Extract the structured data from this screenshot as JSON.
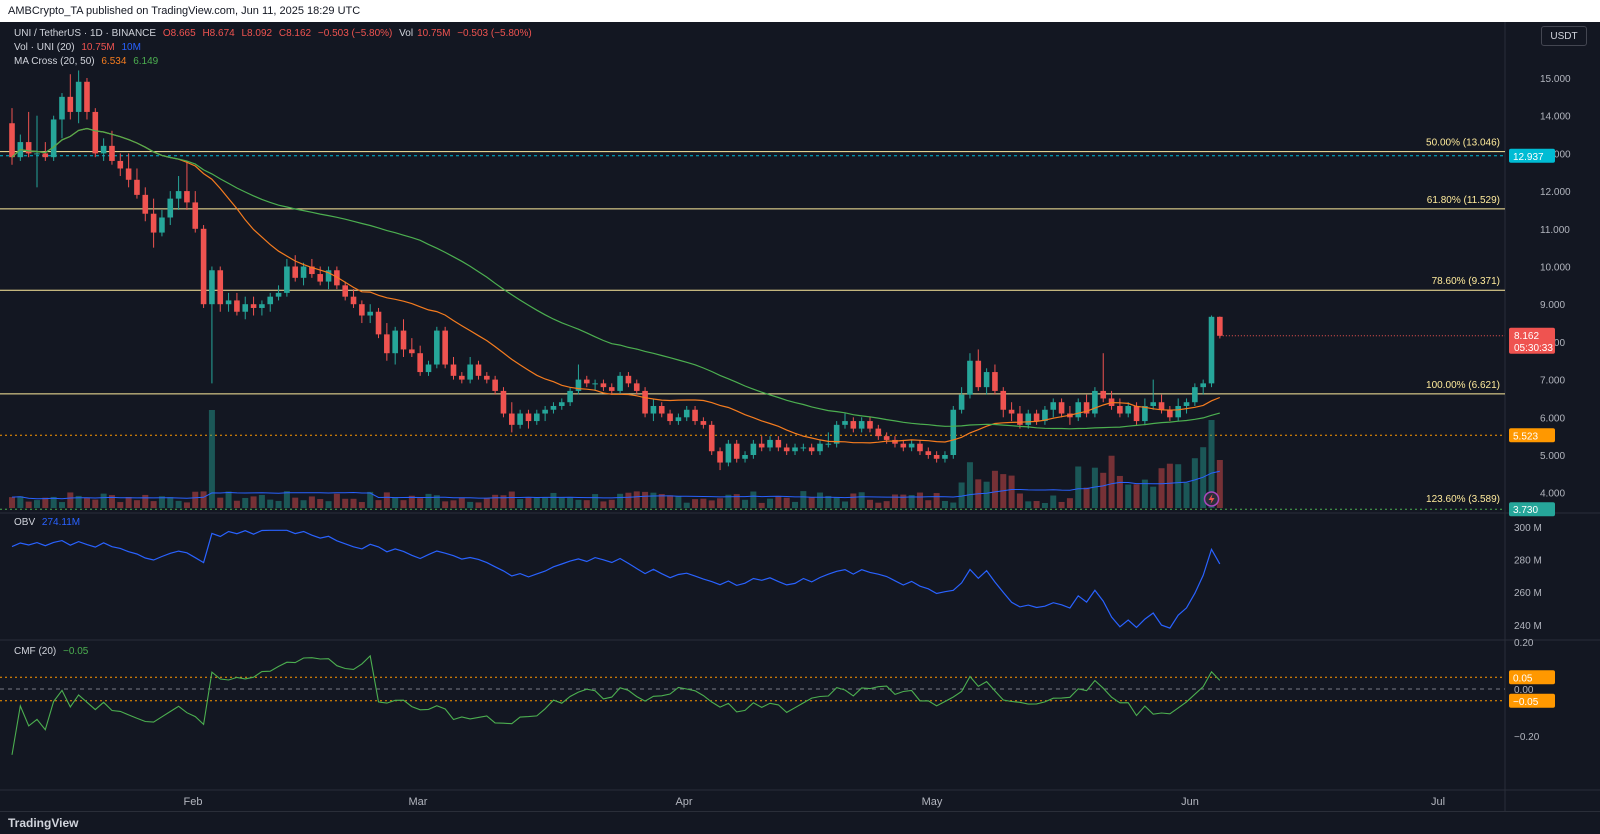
{
  "header": {
    "text": "AMBCrypto_TA published on TradingView.com, Jun 11, 2025 18:29 UTC"
  },
  "legend": {
    "symbol": "UNI / TetherUS · 1D · BINANCE",
    "open": "O8.665",
    "high": "H8.674",
    "low": "L8.092",
    "close": "C8.162",
    "change": "−0.503 (−5.80%)",
    "vol_label": "Vol",
    "vol_value": "10.75M",
    "vol_change": "−0.503 (−5.80%)",
    "vol_ind_label": "Vol · UNI (20)",
    "vol_ind_v1": "10.75M",
    "vol_ind_v2": "10M",
    "ma_label": "MA Cross (20, 50)",
    "ma_v1": "6.534",
    "ma_v2": "6.149",
    "obv_label": "OBV",
    "obv_value": "274.11M",
    "cmf_label": "CMF (20)",
    "cmf_value": "−0.05"
  },
  "currency_button": "USDT",
  "footer": {
    "logo": "TradingView"
  },
  "colors": {
    "up": "#26a69a",
    "down": "#ef5350",
    "ma20": "#f57c1f",
    "ma50": "#4caf50",
    "obv": "#2962ff",
    "fib": "#ffeb9c",
    "cyan": "#00bcd4",
    "orange": "#ff9800",
    "green_level": "#4caf50",
    "cmf": "#4caf50"
  },
  "icons": [
    "lightning-icon"
  ],
  "chart_data": {
    "type": "candlestick",
    "x_axis_labels": [
      "Feb",
      "Mar",
      "Apr",
      "May",
      "Jun",
      "Jul"
    ],
    "price_axis": {
      "ticks": [
        "15.000",
        "14.000",
        "13.000",
        "12.000",
        "11.000",
        "10.000",
        "9.000",
        "8.000",
        "7.000",
        "6.000",
        "5.000",
        "4.000"
      ],
      "current_price": "8.162",
      "countdown": "05:30:33",
      "level_badges": [
        {
          "label": "12.937",
          "color": "#00bcd4"
        },
        {
          "label": "5.523",
          "color": "#ff9800"
        },
        {
          "label": "3.730",
          "color": "#26a69a"
        }
      ]
    },
    "fib_levels": [
      {
        "label": "50.00% (13.046)",
        "value": 13.046
      },
      {
        "label": "61.80% (11.529)",
        "value": 11.529
      },
      {
        "label": "78.60% (9.371)",
        "value": 9.371
      },
      {
        "label": "100.00% (6.621)",
        "value": 6.621
      },
      {
        "label": "123.60% (3.589)",
        "value": 3.589
      }
    ],
    "candles": [
      [
        13.8,
        14.2,
        12.7,
        12.9
      ],
      [
        12.9,
        13.5,
        12.8,
        13.3
      ],
      [
        13.3,
        14.1,
        12.9,
        13.0
      ],
      [
        13.0,
        14.0,
        12.1,
        13.0
      ],
      [
        13.0,
        13.3,
        12.8,
        12.9
      ],
      [
        12.9,
        14.0,
        12.8,
        13.9
      ],
      [
        13.9,
        14.6,
        13.4,
        14.5
      ],
      [
        14.5,
        15.1,
        13.9,
        14.1
      ],
      [
        14.1,
        15.2,
        13.8,
        14.9
      ],
      [
        14.9,
        15.0,
        13.9,
        14.1
      ],
      [
        14.1,
        14.2,
        12.9,
        13.0
      ],
      [
        13.0,
        13.4,
        12.8,
        13.2
      ],
      [
        13.2,
        13.6,
        12.7,
        12.8
      ],
      [
        12.8,
        13.0,
        12.4,
        12.6
      ],
      [
        12.6,
        13.0,
        12.1,
        12.3
      ],
      [
        12.3,
        12.6,
        11.8,
        11.9
      ],
      [
        11.9,
        12.1,
        11.2,
        11.4
      ],
      [
        11.4,
        11.8,
        10.5,
        10.9
      ],
      [
        10.9,
        11.5,
        10.8,
        11.3
      ],
      [
        11.3,
        12.0,
        11.1,
        11.8
      ],
      [
        11.8,
        12.4,
        11.5,
        12.0
      ],
      [
        12.0,
        12.8,
        11.5,
        11.7
      ],
      [
        11.7,
        12.0,
        10.9,
        11.0
      ],
      [
        11.0,
        11.1,
        8.9,
        9.0
      ],
      [
        9.0,
        10.0,
        6.9,
        9.9
      ],
      [
        9.9,
        10.0,
        8.8,
        9.0
      ],
      [
        9.0,
        9.3,
        8.8,
        9.1
      ],
      [
        9.1,
        9.3,
        8.7,
        8.8
      ],
      [
        8.8,
        9.2,
        8.6,
        9.0
      ],
      [
        9.0,
        9.2,
        8.7,
        8.9
      ],
      [
        8.9,
        9.1,
        8.7,
        9.0
      ],
      [
        9.0,
        9.3,
        8.8,
        9.2
      ],
      [
        9.2,
        9.5,
        9.1,
        9.3
      ],
      [
        9.3,
        10.2,
        9.2,
        10.0
      ],
      [
        10.0,
        10.3,
        9.6,
        9.7
      ],
      [
        9.7,
        10.1,
        9.5,
        10.0
      ],
      [
        10.0,
        10.2,
        9.7,
        9.8
      ],
      [
        9.8,
        10.0,
        9.5,
        9.6
      ],
      [
        9.6,
        10.0,
        9.4,
        9.9
      ],
      [
        9.9,
        10.0,
        9.4,
        9.5
      ],
      [
        9.5,
        9.6,
        9.1,
        9.2
      ],
      [
        9.2,
        9.4,
        8.9,
        9.0
      ],
      [
        9.0,
        9.1,
        8.5,
        8.7
      ],
      [
        8.7,
        9.0,
        8.5,
        8.8
      ],
      [
        8.8,
        8.9,
        8.1,
        8.2
      ],
      [
        8.2,
        8.5,
        7.5,
        7.7
      ],
      [
        7.7,
        8.4,
        7.4,
        8.3
      ],
      [
        8.3,
        8.6,
        7.6,
        7.8
      ],
      [
        7.8,
        8.1,
        7.6,
        7.7
      ],
      [
        7.7,
        7.9,
        7.1,
        7.2
      ],
      [
        7.2,
        7.5,
        7.1,
        7.4
      ],
      [
        7.4,
        8.4,
        7.3,
        8.3
      ],
      [
        8.3,
        8.4,
        7.3,
        7.4
      ],
      [
        7.4,
        7.6,
        7.0,
        7.1
      ],
      [
        7.1,
        7.2,
        6.9,
        7.0
      ],
      [
        7.0,
        7.6,
        6.9,
        7.4
      ],
      [
        7.4,
        7.5,
        7.0,
        7.1
      ],
      [
        7.1,
        7.2,
        6.9,
        7.0
      ],
      [
        7.0,
        7.1,
        6.6,
        6.7
      ],
      [
        6.7,
        6.8,
        6.0,
        6.1
      ],
      [
        6.1,
        6.4,
        5.6,
        5.8
      ],
      [
        5.8,
        6.2,
        5.7,
        6.1
      ],
      [
        6.1,
        6.2,
        5.7,
        5.9
      ],
      [
        5.9,
        6.2,
        5.8,
        6.1
      ],
      [
        6.1,
        6.3,
        5.9,
        6.2
      ],
      [
        6.2,
        6.4,
        6.1,
        6.3
      ],
      [
        6.3,
        6.5,
        6.2,
        6.4
      ],
      [
        6.4,
        6.8,
        6.3,
        6.7
      ],
      [
        6.7,
        7.4,
        6.6,
        7.0
      ],
      [
        7.0,
        7.1,
        6.8,
        6.9
      ],
      [
        6.9,
        7.0,
        6.7,
        6.9
      ],
      [
        6.9,
        7.0,
        6.7,
        6.8
      ],
      [
        6.8,
        6.9,
        6.6,
        6.7
      ],
      [
        6.7,
        7.2,
        6.6,
        7.1
      ],
      [
        7.1,
        7.2,
        6.8,
        6.9
      ],
      [
        6.9,
        7.0,
        6.6,
        6.7
      ],
      [
        6.7,
        6.8,
        6.0,
        6.1
      ],
      [
        6.1,
        6.5,
        5.9,
        6.3
      ],
      [
        6.3,
        6.4,
        6.0,
        6.1
      ],
      [
        6.1,
        6.2,
        5.8,
        5.9
      ],
      [
        5.9,
        6.1,
        5.8,
        6.0
      ],
      [
        6.0,
        6.3,
        5.9,
        6.2
      ],
      [
        6.2,
        6.3,
        5.8,
        5.9
      ],
      [
        5.9,
        6.0,
        5.7,
        5.8
      ],
      [
        5.8,
        5.9,
        5.0,
        5.1
      ],
      [
        5.1,
        5.2,
        4.6,
        4.8
      ],
      [
        4.8,
        5.4,
        4.7,
        5.3
      ],
      [
        5.3,
        5.4,
        4.8,
        4.9
      ],
      [
        4.9,
        5.1,
        4.8,
        5.0
      ],
      [
        5.0,
        5.4,
        4.9,
        5.3
      ],
      [
        5.3,
        5.5,
        5.1,
        5.2
      ],
      [
        5.2,
        5.5,
        5.1,
        5.4
      ],
      [
        5.4,
        5.5,
        5.1,
        5.2
      ],
      [
        5.2,
        5.3,
        5.0,
        5.1
      ],
      [
        5.1,
        5.3,
        5.0,
        5.2
      ],
      [
        5.2,
        5.3,
        5.1,
        5.2
      ],
      [
        5.2,
        5.3,
        5.0,
        5.1
      ],
      [
        5.1,
        5.4,
        5.0,
        5.3
      ],
      [
        5.3,
        5.6,
        5.2,
        5.3
      ],
      [
        5.3,
        5.9,
        5.2,
        5.8
      ],
      [
        5.8,
        6.1,
        5.7,
        5.9
      ],
      [
        5.9,
        6.0,
        5.6,
        5.7
      ],
      [
        5.7,
        6.0,
        5.6,
        5.9
      ],
      [
        5.9,
        6.0,
        5.6,
        5.7
      ],
      [
        5.7,
        5.8,
        5.4,
        5.5
      ],
      [
        5.5,
        5.6,
        5.3,
        5.4
      ],
      [
        5.4,
        5.5,
        5.2,
        5.3
      ],
      [
        5.3,
        5.4,
        5.1,
        5.2
      ],
      [
        5.2,
        5.4,
        5.1,
        5.3
      ],
      [
        5.3,
        5.4,
        5.0,
        5.1
      ],
      [
        5.1,
        5.2,
        4.9,
        5.0
      ],
      [
        5.0,
        5.1,
        4.8,
        4.9
      ],
      [
        4.9,
        5.1,
        4.8,
        5.0
      ],
      [
        5.0,
        6.3,
        4.9,
        6.2
      ],
      [
        6.2,
        6.8,
        6.1,
        6.6
      ],
      [
        6.6,
        7.7,
        6.5,
        7.5
      ],
      [
        7.5,
        7.8,
        6.7,
        6.8
      ],
      [
        6.8,
        7.3,
        6.6,
        7.2
      ],
      [
        7.2,
        7.4,
        6.6,
        6.7
      ],
      [
        6.7,
        6.8,
        6.0,
        6.2
      ],
      [
        6.2,
        6.4,
        5.9,
        6.1
      ],
      [
        6.1,
        6.3,
        5.7,
        5.8
      ],
      [
        5.8,
        6.2,
        5.7,
        6.1
      ],
      [
        6.1,
        6.2,
        5.8,
        5.9
      ],
      [
        5.9,
        6.3,
        5.8,
        6.2
      ],
      [
        6.2,
        6.5,
        6.0,
        6.4
      ],
      [
        6.4,
        6.5,
        6.0,
        6.1
      ],
      [
        6.1,
        6.3,
        5.8,
        6.0
      ],
      [
        6.0,
        6.5,
        5.9,
        6.4
      ],
      [
        6.4,
        6.6,
        6.0,
        6.1
      ],
      [
        6.1,
        6.8,
        6.0,
        6.7
      ],
      [
        6.7,
        7.7,
        6.4,
        6.5
      ],
      [
        6.5,
        6.7,
        6.2,
        6.3
      ],
      [
        6.3,
        6.5,
        6.0,
        6.1
      ],
      [
        6.1,
        6.4,
        6.0,
        6.3
      ],
      [
        6.3,
        6.4,
        5.8,
        5.9
      ],
      [
        5.9,
        6.5,
        5.8,
        6.3
      ],
      [
        6.3,
        7.0,
        6.2,
        6.4
      ],
      [
        6.4,
        6.6,
        6.1,
        6.2
      ],
      [
        6.2,
        6.3,
        5.9,
        6.0
      ],
      [
        6.0,
        6.5,
        5.9,
        6.3
      ],
      [
        6.3,
        6.5,
        6.1,
        6.4
      ],
      [
        6.4,
        6.9,
        6.3,
        6.8
      ],
      [
        6.8,
        7.0,
        6.6,
        6.9
      ],
      [
        6.9,
        8.7,
        6.8,
        8.665
      ],
      [
        8.665,
        8.674,
        8.092,
        8.162
      ]
    ],
    "obv_axis": [
      "300 M",
      "280 M",
      "260 M",
      "240 M"
    ],
    "cmf_axis": [
      "0.20",
      "0.05",
      "0.00",
      "−0.05",
      "−0.20"
    ],
    "cmf_badges": [
      {
        "label": "0.05",
        "color": "#ff9800"
      },
      {
        "label": "−0.05",
        "color": "#ff9800"
      }
    ]
  }
}
